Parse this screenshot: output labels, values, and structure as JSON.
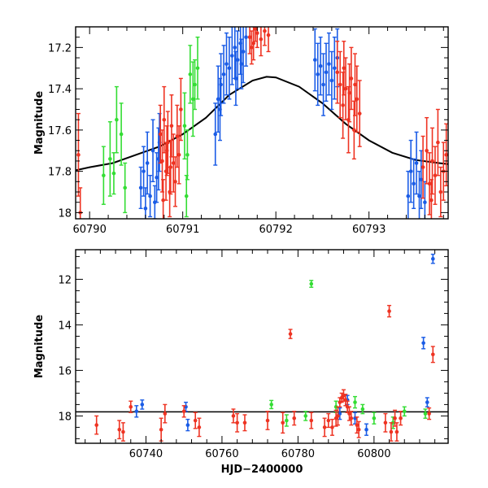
{
  "chart_data": [
    {
      "type": "scatter",
      "title": "",
      "xlabel": "",
      "ylabel": "Magnitude",
      "xlim": [
        60789.85,
        60793.85
      ],
      "ylim": [
        18.03,
        17.1
      ],
      "y_inverted": true,
      "x_ticks": [
        60790,
        60791,
        60792,
        60793
      ],
      "y_ticks": [
        17.2,
        17.4,
        17.6,
        17.8,
        18
      ],
      "y_tick_labels": [
        "17.2",
        "17.4",
        "17.6",
        "17.8",
        "18"
      ],
      "series": [
        {
          "color": "#33dd33",
          "points": [
            [
              60790.15,
              17.82,
              0.14
            ],
            [
              60790.22,
              17.74,
              0.18
            ],
            [
              60790.29,
              17.55,
              0.16
            ],
            [
              60790.34,
              17.62,
              0.15
            ],
            [
              60790.38,
              17.88,
              0.12
            ],
            [
              60790.26,
              17.81,
              0.1
            ],
            [
              60791.02,
              17.58,
              0.16
            ],
            [
              60791.05,
              17.72,
              0.12
            ],
            [
              60791.08,
              17.33,
              0.14
            ],
            [
              60791.11,
              17.45,
              0.18
            ],
            [
              60791.13,
              17.38,
              0.12
            ],
            [
              60791.16,
              17.3,
              0.15
            ],
            [
              60791.04,
              17.92,
              0.1
            ]
          ]
        },
        {
          "color": "#1a5ce6",
          "points": [
            [
              60790.55,
              17.88,
              0.1
            ],
            [
              60790.58,
              17.8,
              0.12
            ],
            [
              60790.62,
              17.76,
              0.15
            ],
            [
              60790.65,
              17.92,
              0.1
            ],
            [
              60790.68,
              17.7,
              0.15
            ],
            [
              60790.6,
              17.98,
              0.1
            ],
            [
              60790.72,
              17.83,
              0.12
            ],
            [
              60790.75,
              17.66,
              0.14
            ],
            [
              60790.7,
              17.95,
              0.08
            ],
            [
              60790.74,
              17.74,
              0.15
            ],
            [
              60791.35,
              17.62,
              0.15
            ],
            [
              60791.38,
              17.45,
              0.16
            ],
            [
              60791.41,
              17.38,
              0.15
            ],
            [
              60791.44,
              17.33,
              0.14
            ],
            [
              60791.47,
              17.28,
              0.15
            ],
            [
              60791.5,
              17.3,
              0.15
            ],
            [
              60791.53,
              17.24,
              0.14
            ],
            [
              60791.56,
              17.2,
              0.15
            ],
            [
              60791.59,
              17.26,
              0.14
            ],
            [
              60791.62,
              17.18,
              0.15
            ],
            [
              60791.65,
              17.22,
              0.15
            ],
            [
              60791.68,
              17.15,
              0.14
            ],
            [
              60791.4,
              17.5,
              0.15
            ],
            [
              60791.57,
              17.35,
              0.13
            ],
            [
              60791.63,
              17.28,
              0.12
            ],
            [
              60792.42,
              17.26,
              0.15
            ],
            [
              60792.45,
              17.33,
              0.15
            ],
            [
              60792.48,
              17.29,
              0.14
            ],
            [
              60792.51,
              17.38,
              0.15
            ],
            [
              60792.54,
              17.32,
              0.14
            ],
            [
              60792.57,
              17.28,
              0.15
            ],
            [
              60792.6,
              17.36,
              0.14
            ],
            [
              60792.63,
              17.3,
              0.15
            ],
            [
              60792.66,
              17.25,
              0.14
            ],
            [
              60793.42,
              17.92,
              0.12
            ],
            [
              60793.45,
              17.8,
              0.15
            ],
            [
              60793.48,
              17.86,
              0.12
            ],
            [
              60793.51,
              17.76,
              0.15
            ],
            [
              60793.54,
              17.92,
              0.12
            ],
            [
              60793.56,
              17.84,
              0.14
            ],
            [
              60793.6,
              17.95,
              0.1
            ]
          ]
        },
        {
          "color": "#ee3322",
          "points": [
            [
              60789.88,
              17.72,
              0.2
            ],
            [
              60789.9,
              18.0,
              0.12
            ],
            [
              60790.76,
              17.62,
              0.14
            ],
            [
              60790.78,
              17.75,
              0.15
            ],
            [
              60790.8,
              17.55,
              0.16
            ],
            [
              60790.82,
              17.8,
              0.14
            ],
            [
              60790.84,
              17.66,
              0.15
            ],
            [
              60790.86,
              17.9,
              0.12
            ],
            [
              60790.88,
              17.58,
              0.15
            ],
            [
              60790.9,
              17.76,
              0.14
            ],
            [
              60790.92,
              17.85,
              0.12
            ],
            [
              60790.94,
              17.63,
              0.15
            ],
            [
              60790.96,
              17.72,
              0.14
            ],
            [
              60790.98,
              17.5,
              0.15
            ],
            [
              60790.79,
              17.94,
              0.1
            ],
            [
              60790.83,
              17.7,
              0.12
            ],
            [
              60790.87,
              17.78,
              0.13
            ],
            [
              60791.72,
              17.15,
              0.08
            ],
            [
              60791.76,
              17.18,
              0.08
            ],
            [
              60791.8,
              17.13,
              0.07
            ],
            [
              60791.84,
              17.16,
              0.08
            ],
            [
              60791.88,
              17.12,
              0.07
            ],
            [
              60791.92,
              17.14,
              0.08
            ],
            [
              60791.74,
              17.2,
              0.08
            ],
            [
              60791.78,
              17.11,
              0.06
            ],
            [
              60792.66,
              17.32,
              0.15
            ],
            [
              60792.69,
              17.38,
              0.16
            ],
            [
              60792.72,
              17.48,
              0.16
            ],
            [
              60792.75,
              17.4,
              0.15
            ],
            [
              60792.78,
              17.55,
              0.16
            ],
            [
              60792.81,
              17.35,
              0.15
            ],
            [
              60792.84,
              17.6,
              0.14
            ],
            [
              60792.87,
              17.45,
              0.16
            ],
            [
              60792.9,
              17.52,
              0.16
            ],
            [
              60792.73,
              17.3,
              0.13
            ],
            [
              60792.79,
              17.42,
              0.14
            ],
            [
              60792.85,
              17.38,
              0.15
            ],
            [
              60793.58,
              17.78,
              0.15
            ],
            [
              60793.62,
              17.7,
              0.16
            ],
            [
              60793.65,
              17.86,
              0.15
            ],
            [
              60793.68,
              17.75,
              0.16
            ],
            [
              60793.71,
              17.82,
              0.14
            ],
            [
              60793.74,
              17.66,
              0.16
            ],
            [
              60793.77,
              17.9,
              0.12
            ],
            [
              60793.8,
              17.8,
              0.14
            ],
            [
              60793.83,
              17.72,
              0.15
            ],
            [
              60793.67,
              17.94,
              0.1
            ]
          ]
        }
      ],
      "model_curve": {
        "color": "#000000",
        "points": [
          [
            60789.85,
            17.795
          ],
          [
            60790.0,
            17.78
          ],
          [
            60790.25,
            17.76
          ],
          [
            60790.5,
            17.72
          ],
          [
            60790.75,
            17.68
          ],
          [
            60791.0,
            17.62
          ],
          [
            60791.25,
            17.54
          ],
          [
            60791.5,
            17.43
          ],
          [
            60791.75,
            17.36
          ],
          [
            60791.9,
            17.342
          ],
          [
            60792.0,
            17.345
          ],
          [
            60792.25,
            17.39
          ],
          [
            60792.5,
            17.47
          ],
          [
            60792.75,
            17.57
          ],
          [
            60793.0,
            17.65
          ],
          [
            60793.25,
            17.71
          ],
          [
            60793.5,
            17.745
          ],
          [
            60793.75,
            17.76
          ],
          [
            60793.85,
            17.765
          ]
        ]
      }
    },
    {
      "type": "scatter",
      "title": "",
      "xlabel": "HJD−2400000",
      "ylabel": "Magnitude",
      "xlim": [
        60721.5,
        60819.5
      ],
      "ylim": [
        19.2,
        10.7
      ],
      "y_inverted": true,
      "x_ticks": [
        60740,
        60760,
        60780,
        60800
      ],
      "y_ticks": [
        12,
        14,
        16,
        18
      ],
      "y_tick_labels": [
        "12",
        "14",
        "16",
        "18"
      ],
      "series": [
        {
          "color": "#33dd33",
          "points": [
            [
              60783.5,
              12.2,
              0.15
            ],
            [
              60773.0,
              17.5,
              0.18
            ],
            [
              60777.0,
              18.2,
              0.25
            ],
            [
              60782.0,
              18.0,
              0.2
            ],
            [
              60790.0,
              17.6,
              0.25
            ],
            [
              60795.0,
              17.4,
              0.25
            ],
            [
              60797.0,
              17.7,
              0.2
            ],
            [
              60800.0,
              18.1,
              0.25
            ],
            [
              60805.0,
              18.3,
              0.25
            ],
            [
              60808.0,
              17.8,
              0.2
            ],
            [
              60813.5,
              17.9,
              0.2
            ]
          ]
        },
        {
          "color": "#1a5ce6",
          "points": [
            [
              60815.5,
              11.1,
              0.2
            ],
            [
              60813.0,
              14.8,
              0.25
            ],
            [
              60814.0,
              17.4,
              0.2
            ],
            [
              60737.5,
              17.8,
              0.25
            ],
            [
              60739.0,
              17.5,
              0.2
            ],
            [
              60750.5,
              17.6,
              0.2
            ],
            [
              60751.0,
              18.4,
              0.25
            ],
            [
              60791.0,
              17.9,
              0.25
            ],
            [
              60793.0,
              17.3,
              0.2
            ],
            [
              60795.0,
              18.1,
              0.25
            ],
            [
              60798.0,
              18.6,
              0.25
            ]
          ]
        },
        {
          "color": "#ee3322",
          "points": [
            [
              60804.0,
              13.4,
              0.25
            ],
            [
              60778.0,
              14.4,
              0.2
            ],
            [
              60815.5,
              15.3,
              0.35
            ],
            [
              60814.5,
              17.9,
              0.25
            ],
            [
              60727.0,
              18.4,
              0.4
            ],
            [
              60733.0,
              18.6,
              0.4
            ],
            [
              60734.0,
              18.7,
              0.4
            ],
            [
              60736.0,
              17.6,
              0.25
            ],
            [
              60744.0,
              18.6,
              0.5
            ],
            [
              60745.0,
              17.9,
              0.4
            ],
            [
              60750.0,
              17.8,
              0.25
            ],
            [
              60753.0,
              18.2,
              0.35
            ],
            [
              60754.0,
              18.5,
              0.4
            ],
            [
              60763.0,
              18.0,
              0.3
            ],
            [
              60764.0,
              18.3,
              0.4
            ],
            [
              60766.0,
              18.3,
              0.35
            ],
            [
              60772.0,
              18.2,
              0.4
            ],
            [
              60776.0,
              18.3,
              0.45
            ],
            [
              60779.0,
              18.1,
              0.3
            ],
            [
              60783.5,
              18.2,
              0.35
            ],
            [
              60787.0,
              18.5,
              0.4
            ],
            [
              60788.0,
              18.2,
              0.3
            ],
            [
              60789.0,
              18.5,
              0.35
            ],
            [
              60790.0,
              18.1,
              0.35
            ],
            [
              60790.5,
              18.0,
              0.4
            ],
            [
              60791.0,
              17.4,
              0.2
            ],
            [
              60791.5,
              17.2,
              0.2
            ],
            [
              60792.0,
              17.1,
              0.25
            ],
            [
              60792.5,
              17.3,
              0.25
            ],
            [
              60793.0,
              17.6,
              0.25
            ],
            [
              60793.5,
              17.9,
              0.3
            ],
            [
              60794.0,
              18.1,
              0.3
            ],
            [
              60795.5,
              18.4,
              0.35
            ],
            [
              60796.0,
              18.6,
              0.35
            ],
            [
              60803.0,
              18.3,
              0.4
            ],
            [
              60804.5,
              18.7,
              0.4
            ],
            [
              60805.5,
              18.1,
              0.35
            ],
            [
              60806.0,
              18.7,
              0.4
            ],
            [
              60807.0,
              18.1,
              0.3
            ]
          ]
        }
      ],
      "baseline": 17.82
    }
  ]
}
